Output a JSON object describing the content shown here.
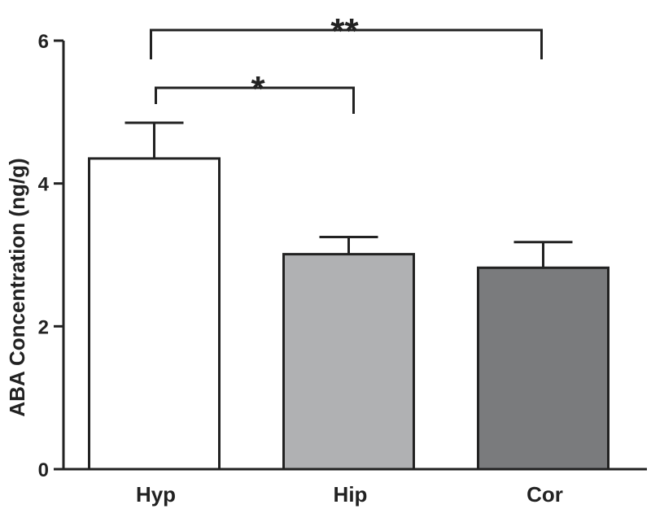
{
  "chart_data": {
    "type": "bar",
    "title": "",
    "xlabel": "",
    "ylabel": "ABA Concentration (ng/g)",
    "ylim": [
      0,
      6
    ],
    "yticks": [
      0,
      2,
      4,
      6
    ],
    "categories": [
      "Hyp",
      "Hip",
      "Cor"
    ],
    "values": [
      4.35,
      3.01,
      2.82
    ],
    "errors": [
      0.5,
      0.24,
      0.36
    ],
    "colors": [
      "#ffffff",
      "#b0b1b3",
      "#7a7b7d"
    ],
    "grid": false,
    "significance": [
      {
        "from": "Hyp",
        "to": "Hip",
        "label": "*"
      },
      {
        "from": "Hyp",
        "to": "Cor",
        "label": "**"
      }
    ]
  }
}
